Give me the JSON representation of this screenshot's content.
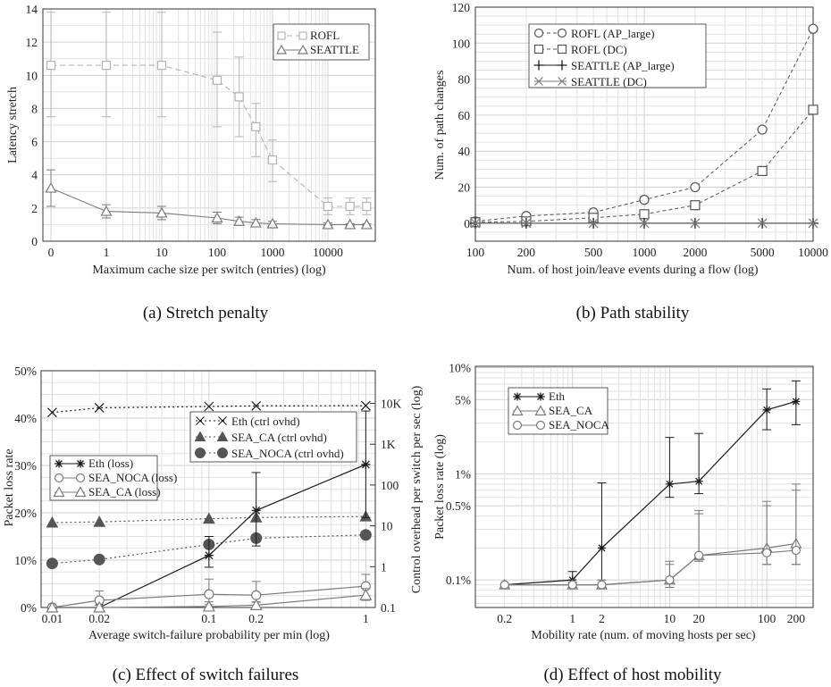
{
  "colors": {
    "light": "#b3b3b3",
    "mid": "#7a7a7a",
    "dark": "#1a1a1a",
    "grid": "#e2e2e2",
    "marker": "#555555"
  },
  "chart_data": [
    {
      "id": "a",
      "type": "line",
      "caption": "(a) Stretch penalty",
      "xlabel": "Maximum cache size per switch (entries) (log)",
      "ylabel": "Latency stretch",
      "x_ticks": [
        "0",
        "1",
        "10",
        "100",
        "1000",
        "10000"
      ],
      "x": [
        0,
        1,
        10,
        100,
        250,
        500,
        1000,
        10000,
        25000,
        50000
      ],
      "ylim": [
        0,
        14
      ],
      "y_ticks": [
        0,
        2,
        4,
        6,
        8,
        10,
        12,
        14
      ],
      "legend_position": "top-right",
      "series": [
        {
          "name": "ROFL",
          "marker": "square",
          "values": [
            10.6,
            10.6,
            10.6,
            9.7,
            8.7,
            6.9,
            4.9,
            2.1,
            2.1,
            2.1
          ],
          "err_low": [
            7.5,
            7.5,
            7.5,
            6.9,
            6.3,
            5.1,
            3.6,
            1.6,
            1.6,
            1.6
          ],
          "err_high": [
            13.8,
            13.8,
            13.8,
            12.6,
            11.1,
            8.3,
            6.1,
            2.6,
            2.6,
            2.6
          ]
        },
        {
          "name": "SEATTLE",
          "marker": "triangle",
          "values": [
            3.2,
            1.8,
            1.7,
            1.4,
            1.2,
            1.1,
            1.05,
            1.0,
            1.0,
            1.0
          ],
          "err_low": [
            2.1,
            1.4,
            1.3,
            1.05,
            1.0,
            0.95,
            0.95,
            0.95,
            0.95,
            0.95
          ],
          "err_high": [
            4.3,
            2.2,
            2.1,
            1.75,
            1.45,
            1.3,
            1.2,
            1.1,
            1.05,
            1.05
          ]
        }
      ]
    },
    {
      "id": "b",
      "type": "line",
      "caption": "(b) Path stability",
      "xlabel": "Num. of host join/leave events during a flow (log)",
      "ylabel": "Num. of path changes",
      "x": [
        100,
        200,
        500,
        1000,
        2000,
        5000,
        10000
      ],
      "x_ticks": [
        "100",
        "200",
        "500",
        "1000",
        "2000",
        "5000",
        "10000"
      ],
      "ylim": [
        -10,
        120
      ],
      "y_ticks": [
        0,
        20,
        40,
        60,
        80,
        100,
        120
      ],
      "legend_position": "top-left",
      "series": [
        {
          "name": "ROFL (AP_large)",
          "marker": "circle",
          "values": [
            1,
            4,
            6,
            13,
            20,
            52,
            108
          ]
        },
        {
          "name": "ROFL (DC)",
          "marker": "square",
          "values": [
            0.5,
            1,
            3,
            5,
            10,
            29,
            63
          ]
        },
        {
          "name": "SEATTLE (AP_large)",
          "marker": "plus",
          "values": [
            0,
            0,
            0,
            0,
            0,
            0,
            0
          ]
        },
        {
          "name": "SEATTLE (DC)",
          "marker": "x",
          "values": [
            0,
            0,
            0,
            0,
            0,
            0,
            0
          ]
        }
      ]
    },
    {
      "id": "c",
      "type": "line",
      "caption": "(c) Effect of switch failures",
      "xlabel": "Average switch-failure probability per min (log)",
      "ylabel": "Packet loss rate",
      "ylabel_right": "Control overhead per switch per sec (log)",
      "x": [
        0.01,
        0.02,
        0.1,
        0.2,
        1
      ],
      "x_ticks": [
        "0.01",
        "0.02",
        "0.1",
        "0.2",
        "1"
      ],
      "ylim": [
        0,
        50
      ],
      "y_ticks": [
        "0%",
        "10%",
        "20%",
        "30%",
        "40%",
        "50%"
      ],
      "y2_ticks": [
        "0.1",
        "1",
        "10",
        "100",
        "1K",
        "10K"
      ],
      "series": [
        {
          "name": "Eth (ctrl ovhd)",
          "marker": "x",
          "axis": "right",
          "values": [
            6000,
            7800,
            8400,
            8700,
            8800
          ]
        },
        {
          "name": "SEA_CA (ctrl ovhd)",
          "marker": "triangle-filled",
          "axis": "right",
          "values": [
            12,
            12.5,
            15,
            16,
            17
          ]
        },
        {
          "name": "SEA_NOCA (ctrl ovhd)",
          "marker": "circle-filled",
          "axis": "right",
          "values": [
            1.2,
            1.5,
            3.5,
            5,
            6
          ]
        },
        {
          "name": "Eth (loss)",
          "marker": "star",
          "axis": "left",
          "values": [
            0,
            0,
            11,
            20.5,
            30.2
          ],
          "err_low": [
            0,
            0,
            8.5,
            13,
            19
          ],
          "err_high": [
            0,
            0,
            15,
            28.5,
            41.5
          ]
        },
        {
          "name": "SEA_NOCA (loss)",
          "marker": "circle",
          "axis": "left",
          "values": [
            0,
            1.5,
            2.8,
            2.6,
            4.5
          ],
          "err_low": [
            0,
            0.5,
            1.2,
            1.1,
            2.5
          ],
          "err_high": [
            0,
            3.5,
            6,
            5.5,
            7
          ]
        },
        {
          "name": "SEA_CA (loss)",
          "marker": "triangle",
          "axis": "left",
          "values": [
            0,
            0,
            0.2,
            0.5,
            2.6
          ],
          "err_low": [
            0,
            0,
            0,
            0,
            1.5
          ],
          "err_high": [
            0,
            0,
            0.6,
            1.2,
            4
          ]
        }
      ]
    },
    {
      "id": "d",
      "type": "line",
      "caption": "(d) Effect of host mobility",
      "xlabel": "Mobility rate (num. of moving hosts per sec)",
      "ylabel": "Packet loss rate (log)",
      "x": [
        0.2,
        1,
        2,
        10,
        20,
        100,
        200
      ],
      "x_ticks": [
        "0.2",
        "1",
        "2",
        "10",
        "20",
        "100",
        "200"
      ],
      "y_ticks": [
        "0.1%",
        "0.5%",
        "1%",
        "5%",
        "10%"
      ],
      "series": [
        {
          "name": "Eth",
          "marker": "star",
          "values": [
            0.09,
            0.1,
            0.2,
            0.8,
            0.85,
            4,
            4.8
          ],
          "err_low": [
            0.09,
            0.085,
            0.09,
            0.6,
            0.65,
            2.6,
            2.9
          ],
          "err_high": [
            0.09,
            0.12,
            0.82,
            2.2,
            2.4,
            6.3,
            7.5
          ]
        },
        {
          "name": "SEA_CA",
          "marker": "triangle",
          "values": [
            0.09,
            0.09,
            0.09,
            0.1,
            0.17,
            0.2,
            0.22
          ],
          "err_low": [
            0.088,
            0.085,
            0.085,
            0.085,
            0.15,
            0.14,
            0.14
          ],
          "err_high": [
            0.092,
            0.095,
            0.1,
            0.15,
            0.45,
            0.55,
            0.8
          ]
        },
        {
          "name": "SEA_NOCA",
          "marker": "circle",
          "values": [
            0.09,
            0.09,
            0.09,
            0.1,
            0.17,
            0.18,
            0.19
          ],
          "err_low": [
            0.088,
            0.085,
            0.085,
            0.085,
            0.15,
            0.14,
            0.14
          ],
          "err_high": [
            0.092,
            0.095,
            0.1,
            0.14,
            0.42,
            0.5,
            0.7
          ]
        }
      ]
    }
  ]
}
